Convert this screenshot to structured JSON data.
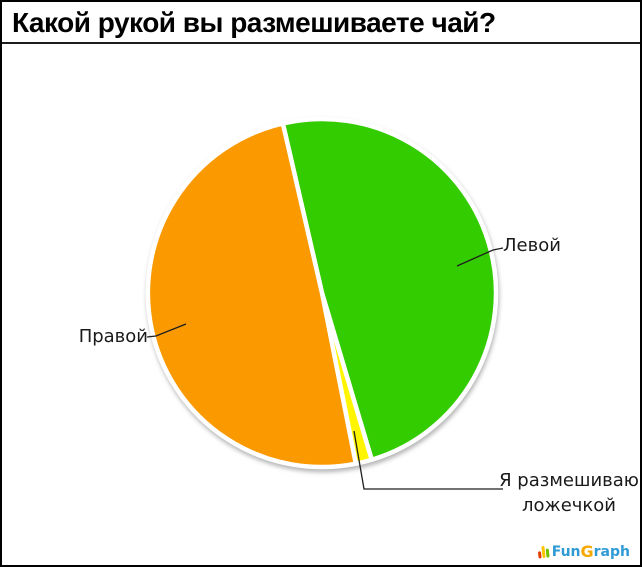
{
  "title": "Какой рукой вы размешиваете чай?",
  "labels": {
    "left_hand": "Левой",
    "right_hand": "Правой",
    "spoon_line1": "Я размешиваю",
    "spoon_line2": "ложечкой"
  },
  "chart_data": {
    "type": "pie",
    "title": "Какой рукой вы размешиваете чай?",
    "legend_position": "none",
    "label_style": "callout",
    "rotation_deg": 347,
    "slices": [
      {
        "label": "Левой",
        "value": 49.0,
        "color": "#33cc00"
      },
      {
        "label": "Я размешиваю ложечкой",
        "value": 1.5,
        "color": "#fff500"
      },
      {
        "label": "Правой",
        "value": 49.5,
        "color": "#fa9900"
      }
    ]
  },
  "logo": {
    "text": "FunGraph",
    "fun": "Fun",
    "g": "G",
    "raph": "raph",
    "colors": {
      "blue": "#2e9ad6",
      "orange": "#f5a800"
    }
  }
}
